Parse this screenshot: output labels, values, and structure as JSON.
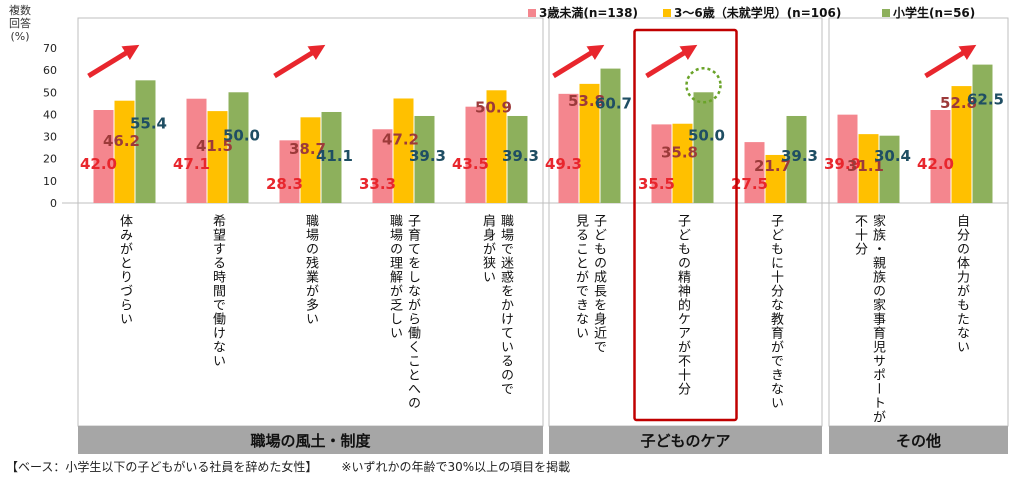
{
  "chart_data": {
    "type": "bar",
    "ylabel": "複数回答(%)",
    "ylabel_lines": [
      "複数",
      "回答",
      "(%)"
    ],
    "ylim": [
      0,
      70
    ],
    "yticks": [
      0,
      10,
      20,
      30,
      40,
      50,
      60,
      70
    ],
    "grid": false,
    "legend_position": "top-right",
    "series": [
      {
        "name": "3歳未満(n=138)",
        "color": "#F4868E",
        "label_color": "#E8262D",
        "values": [
          42.0,
          47.1,
          28.3,
          33.3,
          43.5,
          49.3,
          35.5,
          27.5,
          39.9,
          42.0
        ]
      },
      {
        "name": "3～6歳（未就学児）(n=106)",
        "color": "#FFC000",
        "label_color": "#9C3A3A",
        "values": [
          46.2,
          41.5,
          38.7,
          47.2,
          50.9,
          53.8,
          35.8,
          21.7,
          31.1,
          52.8
        ]
      },
      {
        "name": "小学生(n=56)",
        "color": "#8DB05C",
        "label_color": "#1F4E63",
        "values": [
          55.4,
          50.0,
          41.1,
          39.3,
          39.3,
          60.7,
          50.0,
          39.3,
          30.4,
          62.5
        ]
      }
    ],
    "categories": [
      "体みがとりづらい",
      "希望する時間で働けない",
      "職場の残業が多い",
      "子育てをしながら働くことへの職場の理解が乏しい",
      "職場で迷惑をかけているので肩身が狭い",
      "子どもの成長を身近で見ることができない",
      "子どもの精神的ケアが不十分",
      "子どもに十分な教育ができない",
      "家族・親族の家事育児サポートが不十分",
      "自分の体力がもたない"
    ],
    "category_lines": [
      [
        "体みがとりづらい"
      ],
      [
        "希望する時間で働けない"
      ],
      [
        "職場の残業が多い"
      ],
      [
        "子育てをしながら働くことへの",
        "職場の理解が乏しい"
      ],
      [
        "職場で迷惑をかけているので",
        "肩身が狭い"
      ],
      [
        "子どもの成長を身近で",
        "見ることができない"
      ],
      [
        "子どもの精神的ケアが不十分"
      ],
      [
        "子どもに十分な教育ができない"
      ],
      [
        "家族・親族の家事育児サポートが",
        "不十分"
      ],
      [
        "自分の体力がもたない"
      ]
    ],
    "groups": [
      {
        "name": "職場の風土・制度",
        "start": 0,
        "end": 4
      },
      {
        "name": "子どものケア",
        "start": 5,
        "end": 7
      },
      {
        "name": "その他",
        "start": 8,
        "end": 9
      }
    ],
    "highlight_category": 6,
    "rising_arrows": [
      0,
      2,
      5,
      6,
      9
    ],
    "group_color": "#A6A6A6"
  },
  "footnote": {
    "base": "【ベース：小学生以下の子どもがいる社員を辞めた女性】",
    "note": "※いずれかの年齢で30%以上の項目を掲載"
  }
}
